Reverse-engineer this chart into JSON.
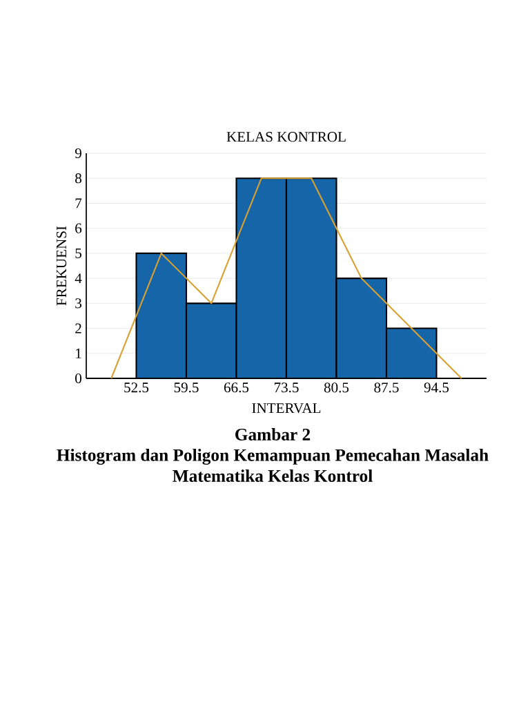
{
  "chart_data": {
    "type": "histogram",
    "title": "KELAS KONTROL",
    "xlabel": "INTERVAL",
    "ylabel": "FREKUENSI",
    "bins": [
      52.5,
      59.5,
      66.5,
      73.5,
      80.5,
      87.5,
      94.5
    ],
    "values": [
      5,
      3,
      8,
      8,
      4,
      2
    ],
    "color": "#1565a8",
    "series": [
      {
        "type": "line",
        "x": [
          49,
          56,
          63,
          70,
          77,
          84,
          91,
          98
        ],
        "values": [
          0,
          5,
          3,
          8,
          8,
          4,
          2,
          0
        ],
        "color": "#d9a032"
      }
    ],
    "xlim": [
      45.5,
      101.5
    ],
    "xticks": [
      52.5,
      59.5,
      66.5,
      73.5,
      80.5,
      87.5,
      94.5
    ],
    "ylim": [
      0,
      9
    ],
    "yticks": [
      0,
      1,
      2,
      3,
      4,
      5,
      6,
      7,
      8,
      9
    ],
    "grid": "y",
    "annotations": [
      "Gambar 2",
      "Histogram dan Poligon Kemampuan Pemecahan Masalah",
      "Matematika Kelas Kontrol"
    ]
  }
}
